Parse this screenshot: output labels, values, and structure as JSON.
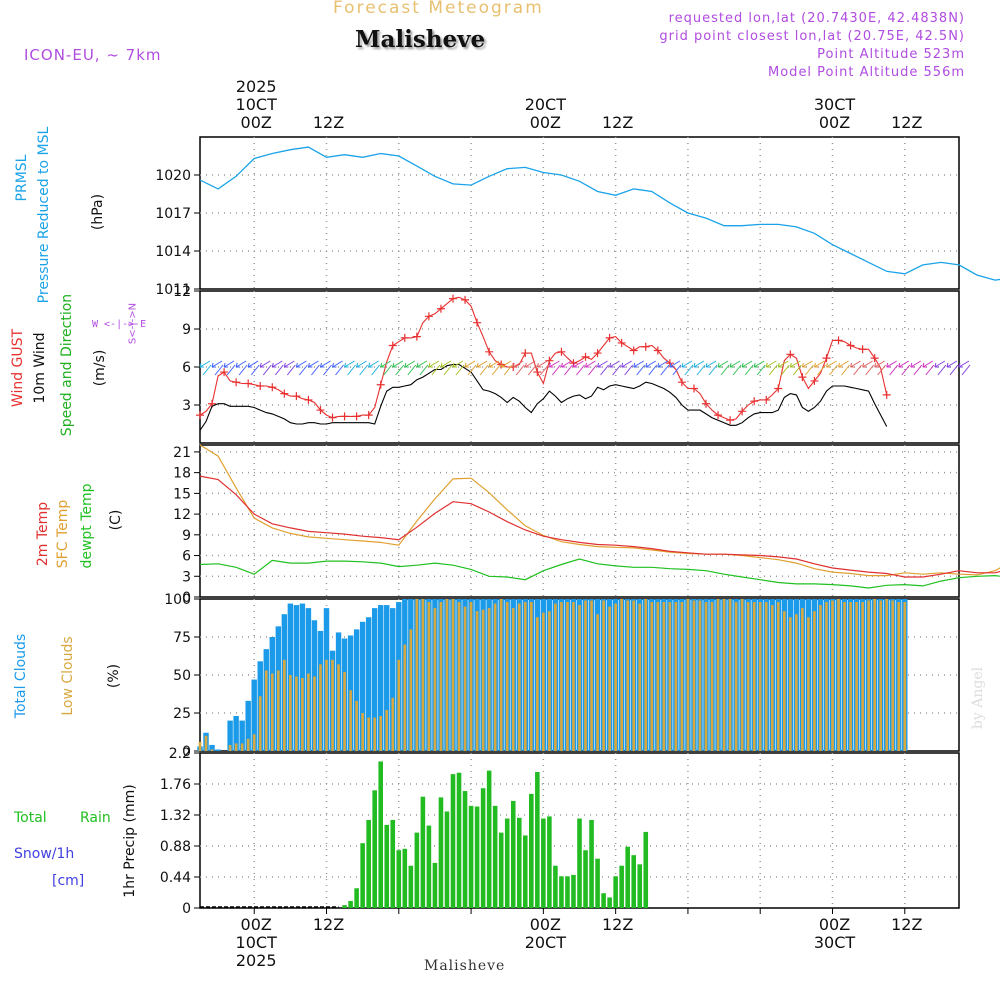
{
  "header": {
    "title": "Forecast Meteogram",
    "location": "Malisheve",
    "model": "ICON-EU, ~ 7km",
    "requested": "requested lon,lat (20.7430E, 42.4838N)",
    "grid_point": "grid point closest lon,lat (20.75E, 42.5N)",
    "point_altitude": "Point Altitude 523m",
    "model_altitude": "Model Point Altitude 556m",
    "bottom_location": "Malisheve",
    "credit": "by Angel"
  },
  "time_axis": {
    "top_labels": [
      {
        "line1": "2025",
        "line2": "10CT",
        "line3": "00Z"
      },
      {
        "line1": "",
        "line2": "",
        "line3": "12Z"
      },
      {
        "line1": "",
        "line2": "20CT",
        "line3": "00Z"
      },
      {
        "line1": "",
        "line2": "",
        "line3": "12Z"
      },
      {
        "line1": "",
        "line2": "30CT",
        "line3": "00Z"
      },
      {
        "line1": "",
        "line2": "",
        "line3": "12Z"
      }
    ],
    "bottom_labels": [
      {
        "line1": "00Z",
        "line2": "10CT",
        "line3": "2025"
      },
      {
        "line1": "12Z",
        "line2": "",
        "line3": ""
      },
      {
        "line1": "00Z",
        "line2": "20CT",
        "line3": ""
      },
      {
        "line1": "12Z",
        "line2": "",
        "line3": ""
      },
      {
        "line1": "00Z",
        "line2": "30CT",
        "line3": ""
      },
      {
        "line1": "12Z",
        "line2": "",
        "line3": ""
      }
    ]
  },
  "labels": {
    "pressure_short": "PRMSL",
    "pressure_long": "Pressure Reduced to MSL",
    "pressure_unit": "(hPa)",
    "gust": "Wind GUST",
    "wind10": "10m Wind",
    "wind_dir": "Speed and Direction",
    "wind_unit": "(m/s)",
    "compass": "W <-|-> E",
    "compass_v": "S<-|->N",
    "t2m": "2m Temp",
    "tsfc": "SFC Temp",
    "dewpt": "dewpt Temp",
    "temp_unit": "(C)",
    "total_clouds": "Total Clouds",
    "low_clouds": "Low Clouds",
    "cloud_unit": "(%)",
    "rain_total": "Total",
    "rain_rain": "Rain",
    "snow": "Snow/1h",
    "snow_unit": "[cm]",
    "precip_axis": "1hr Precip (mm)"
  },
  "colors": {
    "pressure": "#1aa3e8",
    "gust": "#e83030",
    "wind": "#000000",
    "t2m": "#e03030",
    "tsfc": "#e0a030",
    "dewpt": "#20c020",
    "total_cloud": "#1a9ae8",
    "low_cloud": "#d8a840",
    "precip": "#22bb22",
    "purple": "#b04ce0",
    "snow": "#4040e0"
  },
  "chart_data": [
    {
      "type": "line",
      "title": "PRMSL Pressure Reduced to MSL",
      "ylabel": "hPa",
      "ylim": [
        1011,
        1023
      ],
      "yticks": [
        1011,
        1014,
        1017,
        1020
      ],
      "hour_start": -9,
      "hour_step": 3,
      "series": [
        {
          "name": "PRMSL",
          "values": [
            1019.6,
            1018.9,
            1019.9,
            1021.3,
            1021.7,
            1022.0,
            1022.2,
            1021.4,
            1021.6,
            1021.4,
            1021.7,
            1021.5,
            1020.7,
            1019.9,
            1019.3,
            1019.2,
            1019.9,
            1020.5,
            1020.6,
            1020.2,
            1020.0,
            1019.5,
            1018.7,
            1018.4,
            1018.9,
            1018.7,
            1017.8,
            1017.0,
            1016.6,
            1016.0,
            1016.0,
            1016.1,
            1016.1,
            1015.9,
            1015.4,
            1014.5,
            1013.8,
            1013.1,
            1012.4,
            1012.2,
            1012.9,
            1013.1,
            1012.9,
            1012.1,
            1011.7,
            1011.9,
            1012.5,
            1013.0,
            1013.7
          ]
        }
      ]
    },
    {
      "type": "line",
      "title": "Wind GUST / 10m Wind Speed and Direction",
      "ylabel": "m/s",
      "ylim": [
        0,
        12
      ],
      "yticks": [
        3,
        6,
        9,
        12
      ],
      "hour_start": -9,
      "hour_step": 1,
      "series": [
        {
          "name": "Wind GUST",
          "marker": "+",
          "values": [
            2.2,
            2.5,
            3.1,
            5.3,
            5.6,
            4.9,
            4.8,
            4.7,
            4.7,
            4.6,
            4.5,
            4.5,
            4.4,
            4.2,
            3.9,
            3.7,
            3.7,
            3.5,
            3.4,
            3.2,
            2.6,
            2.2,
            2.0,
            2.1,
            2.1,
            2.1,
            2.1,
            2.2,
            2.2,
            2.8,
            4.6,
            6.4,
            7.7,
            8.0,
            8.3,
            8.3,
            8.4,
            9.5,
            10.0,
            10.2,
            10.6,
            11.0,
            11.4,
            11.5,
            11.3,
            10.8,
            9.5,
            8.4,
            7.2,
            6.5,
            6.2,
            6.0,
            6.0,
            6.2,
            7.1,
            7.1,
            5.6,
            4.7,
            6.5,
            7.1,
            7.2,
            6.7,
            6.3,
            6.5,
            6.8,
            6.6,
            7.1,
            7.7,
            8.3,
            8.4,
            7.9,
            7.6,
            7.3,
            7.6,
            7.6,
            7.7,
            7.3,
            6.7,
            6.3,
            5.8,
            4.8,
            4.3,
            4.3,
            3.9,
            3.1,
            2.6,
            2.2,
            2.0,
            1.8,
            1.9,
            2.5,
            3.0,
            3.3,
            3.4,
            3.4,
            3.8,
            4.3,
            6.5,
            7.0,
            6.7,
            5.2,
            4.3,
            4.9,
            5.5,
            6.7,
            8.1,
            8.1,
            8.0,
            7.7,
            7.5,
            7.4,
            7.4,
            6.7,
            5.9,
            3.8
          ]
        },
        {
          "name": "10m Wind",
          "values": [
            1.0,
            1.7,
            2.9,
            3.1,
            3.1,
            2.9,
            2.9,
            2.9,
            2.9,
            2.8,
            2.6,
            2.4,
            2.3,
            2.1,
            1.9,
            1.6,
            1.5,
            1.5,
            1.6,
            1.6,
            1.5,
            1.5,
            1.6,
            1.6,
            1.6,
            1.6,
            1.6,
            1.6,
            1.6,
            1.5,
            2.9,
            4.1,
            4.4,
            4.4,
            4.5,
            4.6,
            5.0,
            5.2,
            5.5,
            5.8,
            5.8,
            6.1,
            6.2,
            6.2,
            5.9,
            5.6,
            4.9,
            4.2,
            4.1,
            3.9,
            3.6,
            3.2,
            3.6,
            3.3,
            2.8,
            2.4,
            3.1,
            3.5,
            4.1,
            3.7,
            3.2,
            3.5,
            3.7,
            3.8,
            3.5,
            3.7,
            4.4,
            4.2,
            4.5,
            4.6,
            4.5,
            4.4,
            4.3,
            4.5,
            4.8,
            4.7,
            4.5,
            4.3,
            4.0,
            3.6,
            3.0,
            2.6,
            2.6,
            2.6,
            2.3,
            2.0,
            1.8,
            1.6,
            1.4,
            1.4,
            1.6,
            2.0,
            2.3,
            2.4,
            2.4,
            2.4,
            2.6,
            3.6,
            3.9,
            3.8,
            2.8,
            2.5,
            2.8,
            3.3,
            4.1,
            4.5,
            4.5,
            4.5,
            4.4,
            4.3,
            4.2,
            4.1,
            3.1,
            2.2,
            1.3
          ]
        }
      ]
    },
    {
      "type": "line",
      "title": "2m Temp / SFC Temp / dewpt Temp",
      "ylabel": "C",
      "ylim": [
        0,
        22
      ],
      "yticks": [
        0,
        3,
        6,
        9,
        12,
        15,
        18,
        21
      ],
      "hour_start": -9,
      "hour_step": 3,
      "series": [
        {
          "name": "2m Temp",
          "values": [
            17.5,
            17.0,
            14.8,
            12.0,
            10.6,
            10.0,
            9.5,
            9.3,
            9.1,
            8.8,
            8.6,
            8.3,
            10.1,
            12.1,
            13.8,
            13.5,
            12.3,
            10.9,
            9.7,
            8.8,
            8.3,
            7.9,
            7.6,
            7.5,
            7.3,
            7.0,
            6.6,
            6.4,
            6.2,
            6.2,
            6.1,
            6.0,
            5.8,
            5.5,
            4.8,
            4.2,
            3.9,
            3.6,
            3.4,
            2.9,
            2.9,
            3.3,
            3.8,
            3.5,
            3.5,
            4.2,
            5.3,
            5.1,
            4.6,
            4.3,
            4.2
          ]
        },
        {
          "name": "SFC Temp",
          "values": [
            22.0,
            20.4,
            15.8,
            11.4,
            10.0,
            9.2,
            8.7,
            8.5,
            8.3,
            8.1,
            7.9,
            7.5,
            11.0,
            14.2,
            17.1,
            17.2,
            15.1,
            12.6,
            10.3,
            8.9,
            8.0,
            7.6,
            7.3,
            7.2,
            7.1,
            6.8,
            6.5,
            6.3,
            6.2,
            6.2,
            6.0,
            5.7,
            5.4,
            4.9,
            4.1,
            3.6,
            3.4,
            3.1,
            3.1,
            3.5,
            3.3,
            3.5,
            3.3,
            3.2,
            3.8,
            5.3,
            6.8,
            6.6,
            5.2,
            4.5,
            4.3
          ]
        },
        {
          "name": "dewpt Temp",
          "values": [
            4.7,
            4.8,
            4.3,
            3.3,
            5.3,
            4.9,
            4.9,
            5.2,
            5.2,
            5.1,
            4.9,
            4.4,
            4.6,
            4.9,
            4.6,
            4.0,
            3.0,
            2.9,
            2.5,
            3.8,
            4.7,
            5.5,
            4.8,
            4.5,
            4.3,
            4.3,
            4.1,
            4.0,
            3.8,
            3.3,
            2.9,
            2.5,
            2.1,
            1.9,
            1.9,
            1.8,
            1.6,
            1.3,
            1.7,
            1.8,
            1.6,
            2.3,
            2.8,
            3.0,
            3.1,
            2.8,
            2.2,
            1.6,
            1.5,
            1.8,
            2.0
          ]
        }
      ]
    },
    {
      "type": "bar",
      "title": "Total Clouds / Low Clouds",
      "ylabel": "%",
      "ylim": [
        0,
        100
      ],
      "yticks": [
        0,
        25,
        50,
        75,
        100
      ],
      "hour_start": -9,
      "hour_step": 1,
      "series": [
        {
          "name": "Total Clouds",
          "values": [
            3,
            12,
            4,
            1,
            0,
            20,
            23,
            20,
            33,
            47,
            59,
            67,
            75,
            82,
            90,
            97,
            96,
            97,
            94,
            86,
            79,
            94,
            66,
            78,
            74,
            76,
            80,
            85,
            88,
            94,
            96,
            96,
            94,
            98,
            100,
            100,
            100,
            100,
            100,
            100,
            100,
            100,
            100,
            100,
            100,
            100,
            100,
            100,
            100,
            100,
            100,
            100,
            100,
            100,
            100,
            100,
            100,
            100,
            100,
            100,
            100,
            100,
            100,
            100,
            100,
            100,
            100,
            100,
            100,
            100,
            100,
            100,
            100,
            100,
            100,
            100,
            100,
            100,
            100,
            100,
            100,
            100,
            100,
            100,
            100,
            100,
            100,
            100,
            100,
            100,
            100,
            100,
            100,
            100,
            100,
            100,
            100,
            100,
            100,
            100,
            100,
            100,
            100,
            100,
            100,
            100,
            100,
            100,
            100,
            100,
            100,
            100,
            100,
            100,
            100,
            100,
            100,
            100
          ]
        },
        {
          "name": "Low Clouds",
          "values": [
            6,
            10,
            1,
            0,
            0,
            4,
            5,
            5,
            8,
            11,
            36,
            53,
            51,
            53,
            60,
            50,
            49,
            48,
            51,
            49,
            57,
            60,
            60,
            57,
            52,
            40,
            33,
            25,
            22,
            22,
            23,
            27,
            35,
            60,
            70,
            80,
            100,
            100,
            98,
            94,
            98,
            100,
            100,
            98,
            95,
            98,
            92,
            93,
            94,
            97,
            100,
            98,
            94,
            97,
            98,
            98,
            88,
            91,
            92,
            97,
            98,
            98,
            98,
            96,
            99,
            99,
            90,
            99,
            95,
            97,
            100,
            99,
            99,
            97,
            100,
            98,
            98,
            98,
            98,
            98,
            98,
            100,
            99,
            99,
            98,
            98,
            100,
            100,
            100,
            98,
            100,
            98,
            98,
            98,
            98,
            96,
            98,
            92,
            88,
            90,
            94,
            88,
            92,
            96,
            98,
            99,
            100,
            98,
            98,
            98,
            98,
            99,
            100,
            99,
            100,
            99,
            98,
            98
          ]
        }
      ]
    },
    {
      "type": "bar",
      "title": "Total Rain / Snow 1hr Precip",
      "ylabel": "1hr Precip (mm)",
      "ylim": [
        0,
        2.2
      ],
      "yticks": [
        0,
        0.44,
        0.88,
        1.32,
        1.76,
        2.2
      ],
      "tick_labels": [
        "0",
        "0.44",
        "0.88",
        "1.32",
        "1.76",
        "2.2"
      ],
      "hour_start": 15,
      "hour_step": 1,
      "series": [
        {
          "name": "1hr Precip",
          "values": [
            0.04,
            0.1,
            0.28,
            0.92,
            1.25,
            1.67,
            2.08,
            1.18,
            1.25,
            0.82,
            0.84,
            0.6,
            1.07,
            1.58,
            1.17,
            0.64,
            1.57,
            1.37,
            1.9,
            1.92,
            1.66,
            1.45,
            1.44,
            1.7,
            1.95,
            1.45,
            1.07,
            1.27,
            1.52,
            1.28,
            1.03,
            1.62,
            1.93,
            1.27,
            1.3,
            0.6,
            0.45,
            0.45,
            0.47,
            1.27,
            0.82,
            1.25,
            0.7,
            0.21,
            0.15,
            0.45,
            0.6,
            0.87,
            0.75,
            0.62,
            1.08
          ]
        }
      ]
    }
  ]
}
